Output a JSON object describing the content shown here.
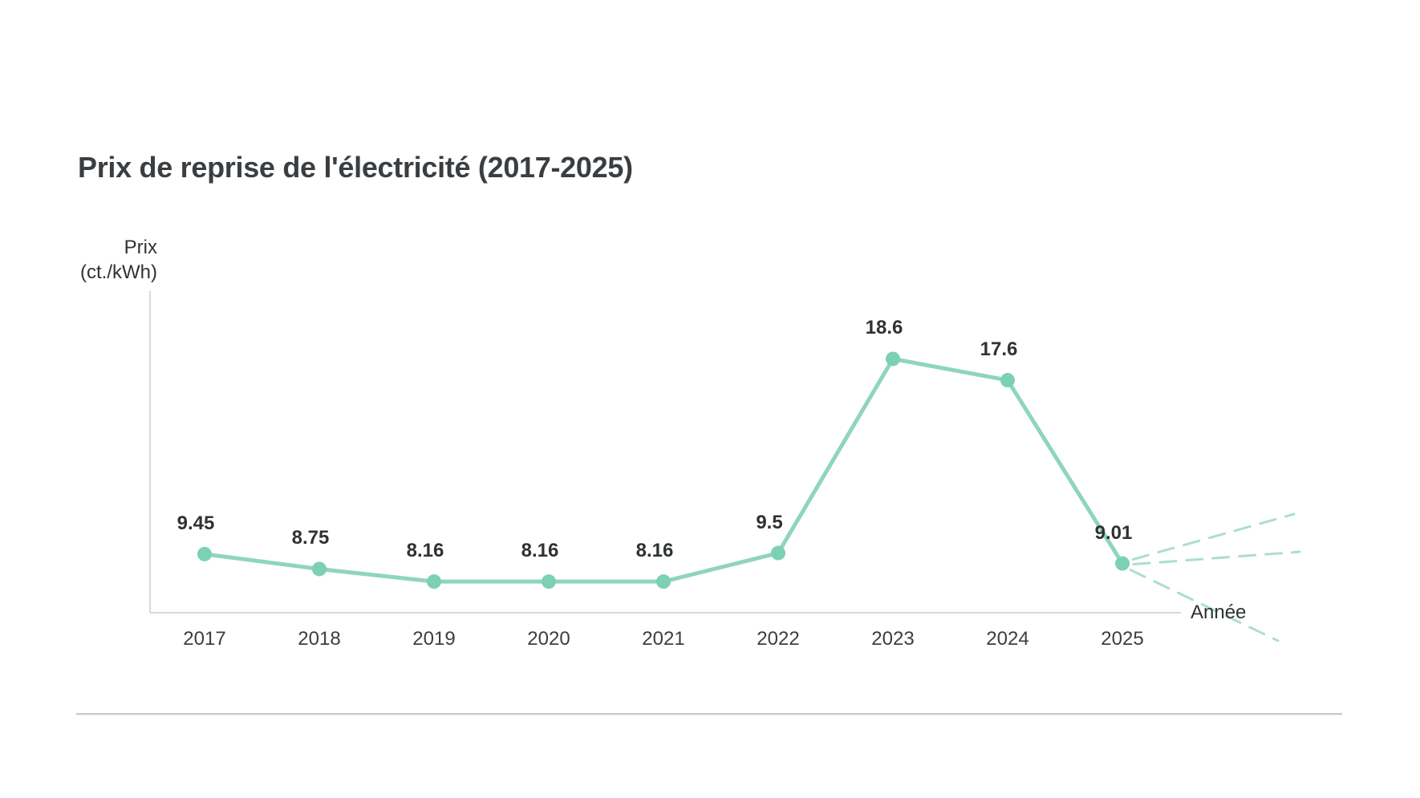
{
  "page": {
    "background": "#ffffff"
  },
  "chart_data": {
    "type": "line",
    "title": "Prix de reprise de l'électricité (2017-2025)",
    "xlabel": "Année",
    "ylabel": "Prix (ct./kWh)",
    "ylabel_lines": [
      "Prix",
      "(ct./kWh)"
    ],
    "categories": [
      "2017",
      "2018",
      "2019",
      "2020",
      "2021",
      "2022",
      "2023",
      "2024",
      "2025"
    ],
    "series": [
      {
        "name": "Prix de reprise de l'électricité",
        "values": [
          9.45,
          8.75,
          8.16,
          8.16,
          8.16,
          9.5,
          18.6,
          17.6,
          9.01
        ]
      }
    ],
    "point_labels": [
      "9.45",
      "8.75",
      "8.16",
      "8.16",
      "8.16",
      "9.5",
      "18.6",
      "17.6",
      "9.01"
    ],
    "ylim": [
      6.7,
      21.7
    ],
    "grid": false,
    "legend": false,
    "axis_ticks_shown": false,
    "projection": {
      "after_category": "2025",
      "style": "dashed",
      "rays": 3,
      "meaning": "future price uncertainty fan (up / flat / down)"
    },
    "colors": {
      "line": "#8fd5be",
      "marker": "#7cd0b5",
      "dashed": "#abdfcd",
      "axis": "#d9d9d9",
      "title_text": "#3b3e41",
      "label_text": "#2f3234",
      "separator": "#c9c9c9"
    }
  }
}
